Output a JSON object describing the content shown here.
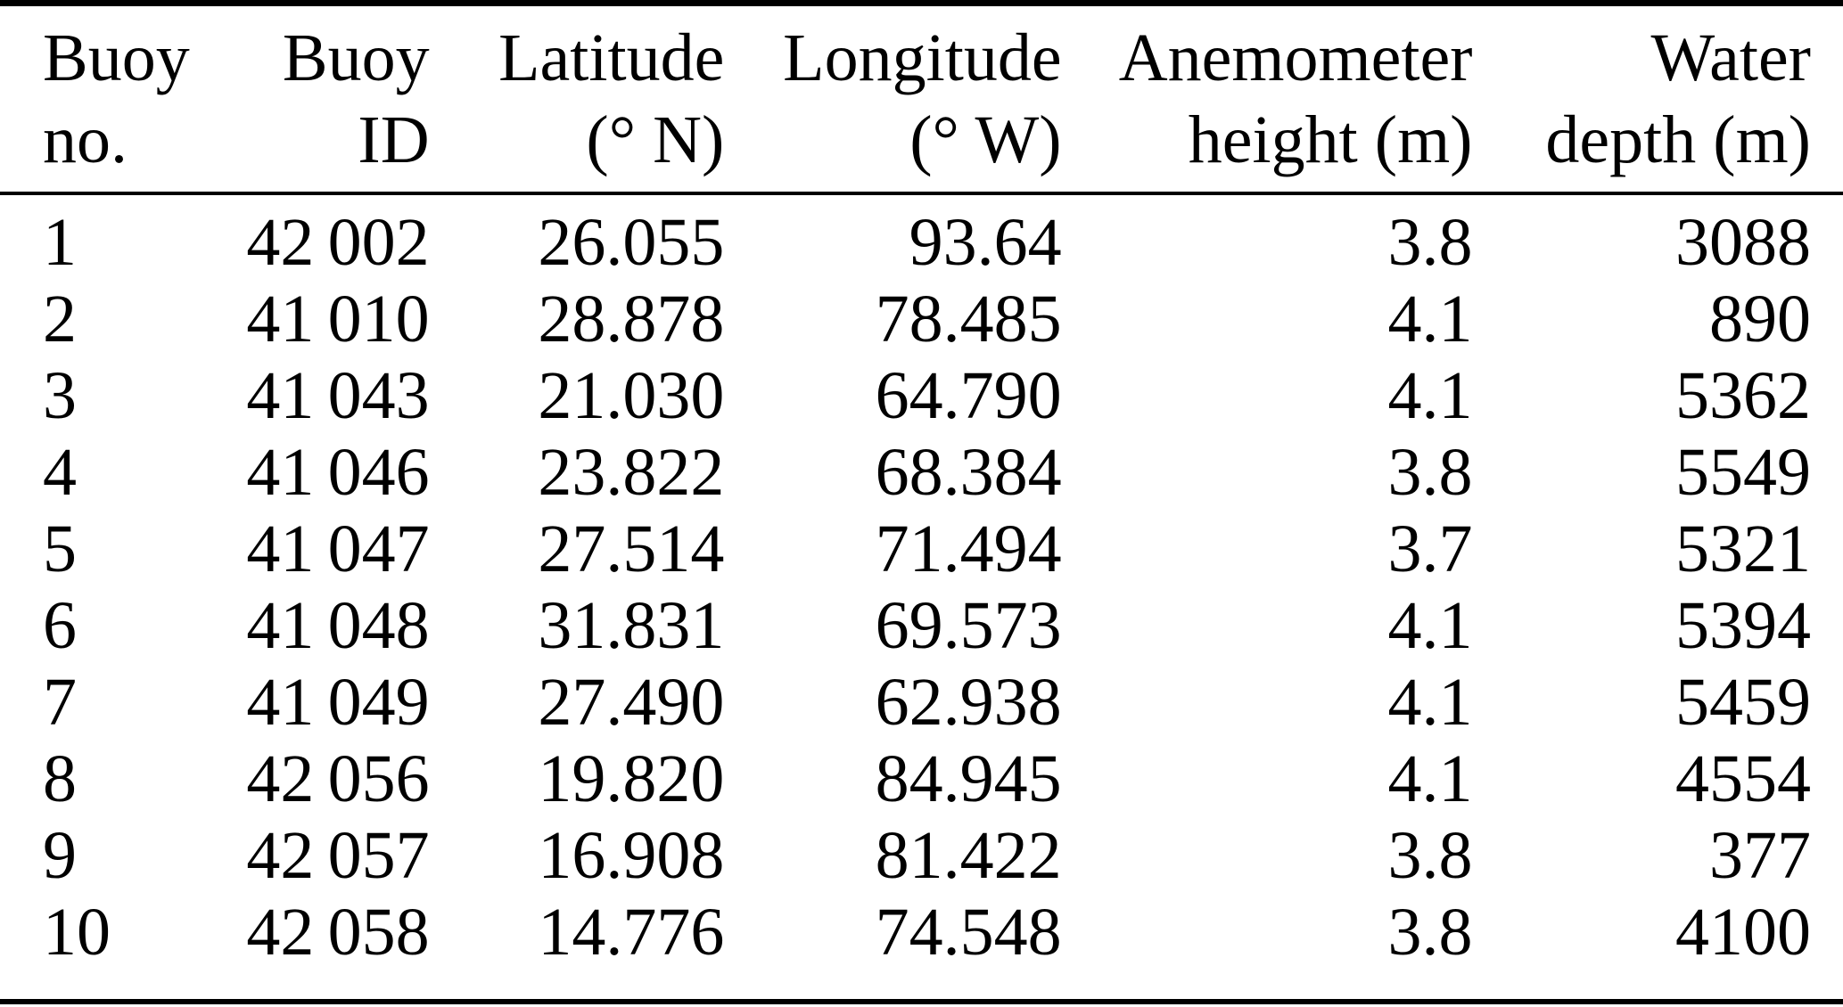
{
  "table": {
    "columns": [
      {
        "key": "buoy-no",
        "line1": "Buoy",
        "line2": "no."
      },
      {
        "key": "buoy-id",
        "line1": "Buoy",
        "line2": "ID"
      },
      {
        "key": "latitude",
        "line1": "Latitude",
        "line2": "(° N)"
      },
      {
        "key": "longitude",
        "line1": "Longitude",
        "line2": "(° W)"
      },
      {
        "key": "anemometer-height",
        "line1": "Anemometer",
        "line2": "height (m)"
      },
      {
        "key": "water-depth",
        "line1": "Water",
        "line2": "depth (m)"
      }
    ],
    "rows": [
      [
        "1",
        "42 002",
        "26.055",
        "93.64",
        "3.8",
        "3088"
      ],
      [
        "2",
        "41 010",
        "28.878",
        "78.485",
        "4.1",
        "890"
      ],
      [
        "3",
        "41 043",
        "21.030",
        "64.790",
        "4.1",
        "5362"
      ],
      [
        "4",
        "41 046",
        "23.822",
        "68.384",
        "3.8",
        "5549"
      ],
      [
        "5",
        "41 047",
        "27.514",
        "71.494",
        "3.7",
        "5321"
      ],
      [
        "6",
        "41 048",
        "31.831",
        "69.573",
        "4.1",
        "5394"
      ],
      [
        "7",
        "41 049",
        "27.490",
        "62.938",
        "4.1",
        "5459"
      ],
      [
        "8",
        "42 056",
        "19.820",
        "84.945",
        "4.1",
        "4554"
      ],
      [
        "9",
        "42 057",
        "16.908",
        "81.422",
        "3.8",
        "377"
      ],
      [
        "10",
        "42 058",
        "14.776",
        "74.548",
        "3.8",
        "4100"
      ]
    ]
  },
  "colors": {
    "text": "#000000",
    "background": "#ffffff",
    "rule": "#000000"
  }
}
